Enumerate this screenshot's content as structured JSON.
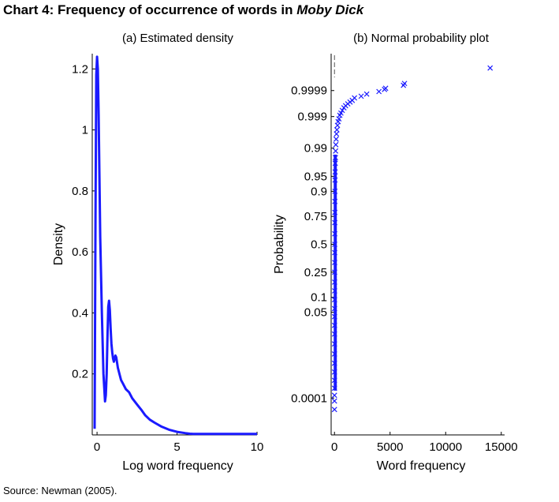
{
  "title": {
    "prefix": "Chart 4:  Frequency of occurrence of words in ",
    "italic": "Moby Dick"
  },
  "source": "Source:  Newman (2005).",
  "colors": {
    "series": "#1a1aff",
    "axis": "#000000",
    "background": "#ffffff"
  },
  "chart_data": [
    {
      "type": "line",
      "title": "(a) Estimated density",
      "xlabel": "Log word frequency",
      "ylabel": "Density",
      "xlim": [
        -0.3,
        10
      ],
      "ylim": [
        0,
        1.25
      ],
      "xticks": [
        0,
        5,
        10
      ],
      "yticks": [
        0.2,
        0.4,
        0.6,
        0.8,
        1,
        1.2
      ],
      "grid": false,
      "series": [
        {
          "x": [
            -0.15,
            -0.1,
            -0.05,
            0.0,
            0.05,
            0.1,
            0.15,
            0.2,
            0.3,
            0.4,
            0.5,
            0.55,
            0.6,
            0.65,
            0.7,
            0.75,
            0.8,
            0.85,
            0.9,
            0.95,
            1.0,
            1.05,
            1.1,
            1.15,
            1.2,
            1.3,
            1.4,
            1.5,
            1.6,
            1.8,
            2.0,
            2.2,
            2.5,
            2.8,
            3.0,
            3.3,
            3.6,
            4.0,
            4.5,
            5.0,
            5.5,
            5.8,
            6.0,
            7.0,
            8.0,
            9.0,
            10.0
          ],
          "values": [
            0.02,
            0.7,
            1.18,
            1.24,
            1.2,
            1.05,
            0.85,
            0.65,
            0.4,
            0.2,
            0.11,
            0.13,
            0.2,
            0.32,
            0.42,
            0.44,
            0.41,
            0.35,
            0.3,
            0.27,
            0.25,
            0.24,
            0.25,
            0.26,
            0.255,
            0.22,
            0.2,
            0.18,
            0.17,
            0.15,
            0.14,
            0.12,
            0.1,
            0.08,
            0.065,
            0.05,
            0.04,
            0.028,
            0.017,
            0.01,
            0.006,
            0.004,
            0.003,
            0.003,
            0.003,
            0.003,
            0.003
          ]
        }
      ]
    },
    {
      "type": "scatter",
      "title": "(b) Normal probability plot",
      "xlabel": "Word frequency",
      "ylabel": "Probability",
      "xlim": [
        -300,
        15300
      ],
      "ylim": [
        2e-06,
        0.999998
      ],
      "yscale": "normal-probability",
      "xticks": [
        0,
        5000,
        10000,
        15000
      ],
      "yticks": [
        0.0001,
        0.05,
        0.1,
        0.25,
        0.5,
        0.75,
        0.9,
        0.95,
        0.99,
        0.999,
        0.9999
      ],
      "ytick_labels": [
        "0.0001",
        "0.05",
        "0.1",
        "0.25",
        "0.5",
        "0.75",
        "0.9",
        "0.95",
        "0.99",
        "0.999",
        "0.9999"
      ],
      "marker": "x",
      "grid": false,
      "points": [
        {
          "x": 1,
          "y": 3.2e-05
        },
        {
          "x": 1,
          "y": 7.5e-05
        },
        {
          "x": 1,
          "y": 0.00013
        },
        {
          "x": 2,
          "y": 0.00025
        },
        {
          "x": 2,
          "y": 0.0005
        },
        {
          "x": 3,
          "y": 0.001
        },
        {
          "x": 3,
          "y": 0.002
        },
        {
          "x": 4,
          "y": 0.004
        },
        {
          "x": 5,
          "y": 0.008
        },
        {
          "x": 6,
          "y": 0.015
        },
        {
          "x": 7,
          "y": 0.025
        },
        {
          "x": 8,
          "y": 0.04
        },
        {
          "x": 9,
          "y": 0.06
        },
        {
          "x": 10,
          "y": 0.09
        },
        {
          "x": 12,
          "y": 0.13
        },
        {
          "x": 14,
          "y": 0.18
        },
        {
          "x": 16,
          "y": 0.25
        },
        {
          "x": 18,
          "y": 0.33
        },
        {
          "x": 20,
          "y": 0.42
        },
        {
          "x": 22,
          "y": 0.5
        },
        {
          "x": 25,
          "y": 0.6
        },
        {
          "x": 28,
          "y": 0.7
        },
        {
          "x": 32,
          "y": 0.78
        },
        {
          "x": 36,
          "y": 0.85
        },
        {
          "x": 42,
          "y": 0.9
        },
        {
          "x": 50,
          "y": 0.94
        },
        {
          "x": 60,
          "y": 0.96
        },
        {
          "x": 70,
          "y": 0.975
        },
        {
          "x": 85,
          "y": 0.982
        },
        {
          "x": 100,
          "y": 0.988
        },
        {
          "x": 120,
          "y": 0.992
        },
        {
          "x": 150,
          "y": 0.9945
        },
        {
          "x": 180,
          "y": 0.9962
        },
        {
          "x": 220,
          "y": 0.9972
        },
        {
          "x": 270,
          "y": 0.998
        },
        {
          "x": 330,
          "y": 0.9985
        },
        {
          "x": 400,
          "y": 0.9988
        },
        {
          "x": 480,
          "y": 0.9991
        },
        {
          "x": 580,
          "y": 0.99925
        },
        {
          "x": 700,
          "y": 0.9994
        },
        {
          "x": 850,
          "y": 0.99952
        },
        {
          "x": 1000,
          "y": 0.9996
        },
        {
          "x": 1200,
          "y": 0.99966
        },
        {
          "x": 1400,
          "y": 0.99971
        },
        {
          "x": 1600,
          "y": 0.99975
        },
        {
          "x": 1800,
          "y": 0.9998
        },
        {
          "x": 2400,
          "y": 0.99983
        },
        {
          "x": 2900,
          "y": 0.99986
        },
        {
          "x": 4000,
          "y": 0.99989
        },
        {
          "x": 4500,
          "y": 0.99991
        },
        {
          "x": 4600,
          "y": 0.99992
        },
        {
          "x": 6200,
          "y": 0.99994
        },
        {
          "x": 6300,
          "y": 0.99995
        },
        {
          "x": 14000,
          "y": 0.99999
        }
      ]
    }
  ]
}
